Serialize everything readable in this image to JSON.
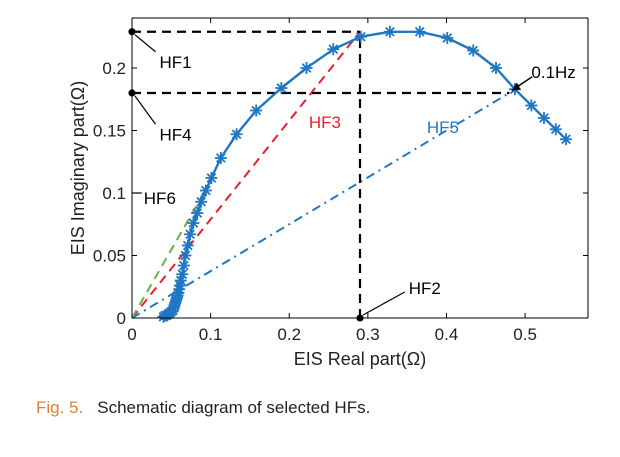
{
  "caption": {
    "label": "Fig. 5.",
    "text": "Schematic diagram of selected HFs."
  },
  "colors": {
    "eis_curve": "#1f77c4",
    "hf3_line": "#e8202a",
    "hf5_line": "#1f77c4",
    "hf6_line": "#6ab04c",
    "guide_lines": "#000000",
    "caption_label": "#e8812a"
  },
  "chart_data": {
    "type": "line",
    "xlabel": "EIS Real part(Ω)",
    "ylabel": "EIS Imaginary part(Ω)",
    "xlim": [
      0,
      0.58
    ],
    "ylim": [
      0,
      0.24
    ],
    "xticks": [
      0,
      0.1,
      0.2,
      0.3,
      0.4,
      0.5
    ],
    "xtick_labels": [
      "0",
      "0.1",
      "0.2",
      "0.3",
      "0.4",
      "0.5"
    ],
    "yticks": [
      0,
      0.05,
      0.1,
      0.15,
      0.2
    ],
    "ytick_labels": [
      "0",
      "0.05",
      "0.1",
      "0.15",
      "0.2"
    ],
    "grid": false,
    "series": [
      {
        "marker": "asterisk",
        "x": [
          0.04,
          0.042,
          0.044,
          0.046,
          0.048,
          0.05,
          0.052,
          0.053,
          0.054,
          0.055,
          0.056,
          0.057,
          0.058,
          0.059,
          0.06,
          0.061,
          0.062,
          0.064,
          0.066,
          0.068,
          0.071,
          0.074,
          0.078,
          0.083,
          0.088,
          0.094,
          0.101,
          0.113,
          0.133,
          0.158,
          0.19,
          0.222,
          0.256,
          0.291,
          0.328,
          0.366,
          0.401,
          0.434,
          0.463,
          0.487,
          0.508,
          0.524,
          0.539,
          0.552
        ],
        "y": [
          0.001,
          0.002,
          0.002,
          0.003,
          0.004,
          0.005,
          0.006,
          0.008,
          0.01,
          0.012,
          0.014,
          0.016,
          0.018,
          0.02,
          0.023,
          0.026,
          0.03,
          0.035,
          0.042,
          0.05,
          0.058,
          0.067,
          0.076,
          0.084,
          0.093,
          0.102,
          0.112,
          0.128,
          0.147,
          0.166,
          0.184,
          0.2,
          0.215,
          0.225,
          0.229,
          0.229,
          0.224,
          0.214,
          0.2,
          0.183,
          0.17,
          0.16,
          0.151,
          0.143
        ]
      }
    ],
    "guide_lines": [
      {
        "style": "dashed",
        "x": [
          0,
          0.29
        ],
        "y": [
          0.229,
          0.229
        ]
      },
      {
        "style": "dashed",
        "x": [
          0.29,
          0.29
        ],
        "y": [
          0,
          0.229
        ]
      },
      {
        "style": "dashed",
        "x": [
          0,
          0.48
        ],
        "y": [
          0.18,
          0.18
        ]
      }
    ],
    "hf_lines": [
      {
        "label": "HF3",
        "style": "dashed",
        "x": [
          0,
          0.29
        ],
        "y": [
          0,
          0.229
        ]
      },
      {
        "label": "HF5",
        "style": "dashdot",
        "x": [
          0,
          0.48
        ],
        "y": [
          0,
          0.18
        ]
      },
      {
        "label": "HF6",
        "style": "dashed",
        "x": [
          0,
          0.096
        ],
        "y": [
          0,
          0.105
        ]
      }
    ],
    "points": [
      {
        "x": 0,
        "y": 0.229
      },
      {
        "x": 0,
        "y": 0.18
      },
      {
        "x": 0.29,
        "y": 0
      }
    ],
    "annotations": [
      {
        "text": "HF1",
        "x": 0.035,
        "y": 0.205
      },
      {
        "text": "HF4",
        "x": 0.035,
        "y": 0.147
      },
      {
        "text": "HF3",
        "x": 0.225,
        "y": 0.157
      },
      {
        "text": "HF5",
        "x": 0.375,
        "y": 0.153
      },
      {
        "text": "HF6",
        "x": 0.015,
        "y": 0.096
      },
      {
        "text": "HF2",
        "x": 0.352,
        "y": 0.024
      },
      {
        "text": "0.1Hz",
        "x": 0.508,
        "y": 0.197
      }
    ]
  }
}
